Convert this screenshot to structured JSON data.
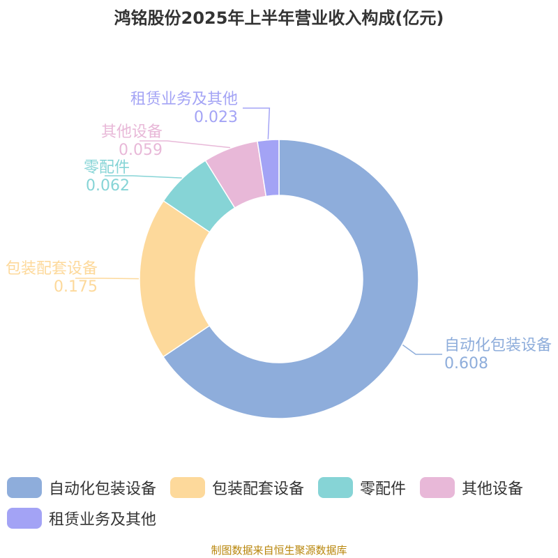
{
  "chart_data": {
    "type": "pie",
    "title": "鸿铭股份2025年上半年营业收入构成(亿元)",
    "categories": [
      "自动化包装设备",
      "包装配套设备",
      "零配件",
      "其他设备",
      "租赁业务及其他"
    ],
    "values": [
      0.608,
      0.175,
      0.062,
      0.059,
      0.023
    ],
    "value_labels": [
      "0.608",
      "0.175",
      "0.062",
      "0.059",
      "0.023"
    ],
    "colors": [
      "#8eaddb",
      "#fdd99b",
      "#86d4d6",
      "#e8b8d8",
      "#a3a3f5"
    ],
    "donut": true,
    "legend_position": "bottom"
  },
  "source": "制图数据来自恒生聚源数据库"
}
